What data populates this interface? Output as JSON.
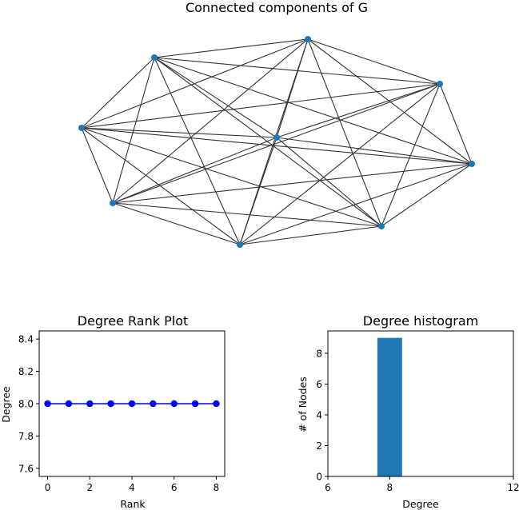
{
  "chart_data": [
    {
      "type": "network",
      "title": "Connected components of G",
      "nodes": [
        0,
        1,
        2,
        3,
        4,
        5,
        6,
        7,
        8
      ],
      "edge_rule": "complete graph K9 (every pair of nodes connected)",
      "node_color": "#1f77b4",
      "edge_color": "#333333"
    },
    {
      "type": "line",
      "title": "Degree Rank Plot",
      "xlabel": "Rank",
      "ylabel": "Degree",
      "x": [
        0,
        1,
        2,
        3,
        4,
        5,
        6,
        7,
        8
      ],
      "y": [
        8,
        8,
        8,
        8,
        8,
        8,
        8,
        8,
        8
      ],
      "xlim": [
        -0.4,
        8.4
      ],
      "ylim": [
        7.55,
        8.45
      ],
      "xticks": [
        "0",
        "2",
        "4",
        "6",
        "8"
      ],
      "yticks": [
        "7.6",
        "7.8",
        "8.0",
        "8.2",
        "8.4"
      ],
      "color": "#0000ff",
      "marker": "circle"
    },
    {
      "type": "bar",
      "title": "Degree histogram",
      "xlabel": "Degree",
      "ylabel": "# of Nodes",
      "bars": [
        {
          "x": 8,
          "value": 9
        }
      ],
      "xlim": [
        6,
        12
      ],
      "ylim": [
        0,
        9.45
      ],
      "xticks": [
        "6",
        "8",
        "12"
      ],
      "yticks": [
        "0",
        "2",
        "4",
        "6",
        "8"
      ],
      "color": "#1f77b4"
    }
  ]
}
